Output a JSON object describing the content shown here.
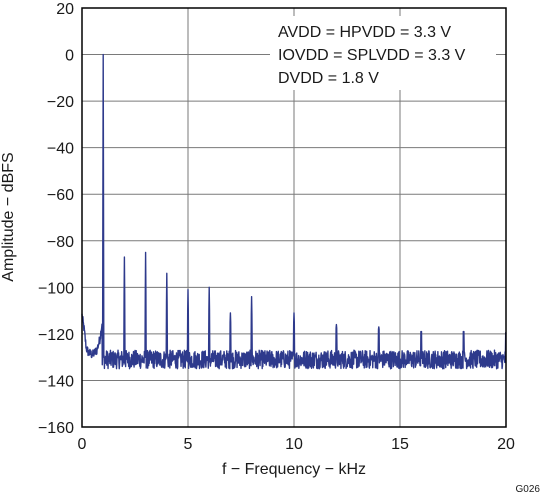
{
  "chart_data": {
    "type": "line",
    "title": "",
    "xlabel": "f − Frequency − kHz",
    "ylabel": "Amplitude − dBFS",
    "xlim": [
      0,
      20
    ],
    "ylim": [
      -160,
      20
    ],
    "x_ticks": [
      0,
      5,
      10,
      15,
      20
    ],
    "y_ticks": [
      20,
      0,
      -20,
      -40,
      -60,
      -80,
      -100,
      -120,
      -140,
      -160
    ],
    "x_tick_labels": [
      "0",
      "5",
      "10",
      "15",
      "20"
    ],
    "y_tick_labels": [
      "20",
      "0",
      "−20",
      "−40",
      "−60",
      "−80",
      "−100",
      "−120",
      "−140",
      "−160"
    ],
    "grid": true,
    "noise_floor_dbfs": -131,
    "series": [
      {
        "color": "#2e3a8c",
        "low_freq_rise": [
          {
            "x": 0.0,
            "y": -112
          },
          {
            "x": 0.1,
            "y": -118
          },
          {
            "x": 0.2,
            "y": -126
          },
          {
            "x": 0.3,
            "y": -128
          },
          {
            "x": 0.5,
            "y": -129
          },
          {
            "x": 0.7,
            "y": -127
          },
          {
            "x": 0.85,
            "y": -122
          },
          {
            "x": 0.95,
            "y": -115
          }
        ],
        "peaks": [
          {
            "x": 1,
            "y": 0
          },
          {
            "x": 2,
            "y": -87
          },
          {
            "x": 3,
            "y": -85
          },
          {
            "x": 4,
            "y": -94
          },
          {
            "x": 5,
            "y": -101
          },
          {
            "x": 6,
            "y": -100
          },
          {
            "x": 7,
            "y": -111
          },
          {
            "x": 8,
            "y": -104
          },
          {
            "x": 10,
            "y": -111
          },
          {
            "x": 12,
            "y": -116
          },
          {
            "x": 14,
            "y": -117
          },
          {
            "x": 16,
            "y": -119
          },
          {
            "x": 18,
            "y": -119
          },
          {
            "x": 20,
            "y": -120
          }
        ]
      }
    ],
    "annotations": [
      "AVDD = HPVDD = 3.3 V",
      "IOVDD = SPLVDD = 3.3 V",
      "DVDD = 1.8 V"
    ],
    "figure_code": "G026"
  }
}
